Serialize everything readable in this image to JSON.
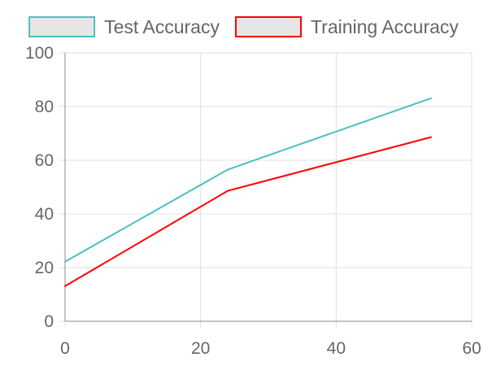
{
  "chart_data": {
    "type": "line",
    "title": "",
    "xlabel": "",
    "ylabel": "",
    "xlim": [
      0,
      60
    ],
    "ylim": [
      0,
      100
    ],
    "x_ticks": [
      0,
      20,
      40,
      60
    ],
    "y_ticks": [
      0,
      20,
      40,
      60,
      80,
      100
    ],
    "grid": true,
    "legend_position": "top",
    "series": [
      {
        "name": "Test Accuracy",
        "color": "#4bc0c0",
        "fill": "#e6e6e6",
        "x": [
          0,
          24,
          54
        ],
        "y": [
          22.2,
          56.5,
          83.1
        ]
      },
      {
        "name": "Training Accuracy",
        "color": "#ff0000",
        "fill": "#e6e6e6",
        "x": [
          0,
          24,
          54
        ],
        "y": [
          13.1,
          48.6,
          68.6
        ]
      }
    ]
  }
}
